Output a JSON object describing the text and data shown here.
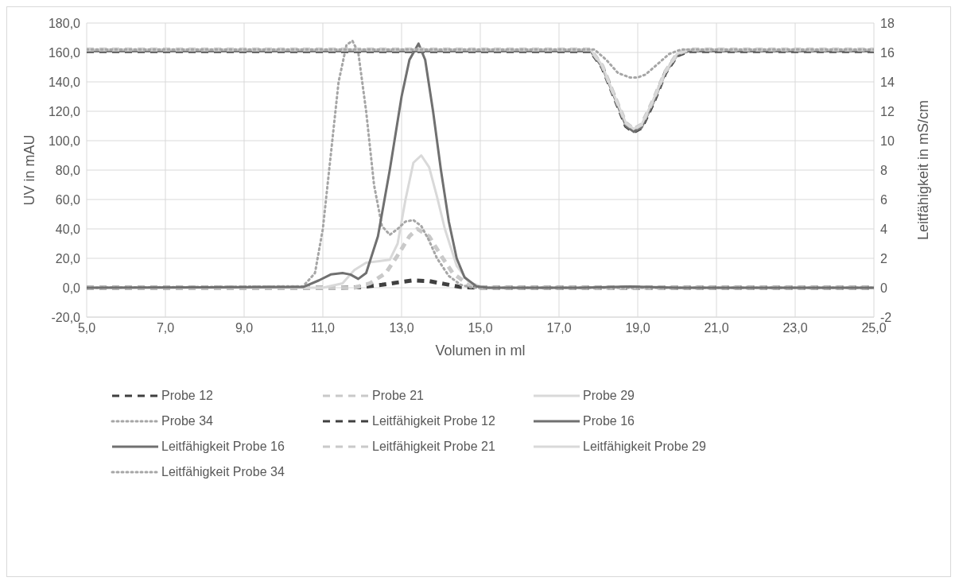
{
  "chart_data": {
    "type": "line",
    "xlabel": "Volumen in ml",
    "ylabel": "UV in mAU",
    "y2label": "Leitfähigkeit in mS/cm",
    "xlim": [
      5,
      25
    ],
    "xticks": [
      {
        "value": 5,
        "label": "5,0"
      },
      {
        "value": 7,
        "label": "7,0"
      },
      {
        "value": 9,
        "label": "9,0"
      },
      {
        "value": 11,
        "label": "11,0"
      },
      {
        "value": 13,
        "label": "13,0"
      },
      {
        "value": 15,
        "label": "15,0"
      },
      {
        "value": 17,
        "label": "17,0"
      },
      {
        "value": 19,
        "label": "19,0"
      },
      {
        "value": 21,
        "label": "21,0"
      },
      {
        "value": 23,
        "label": "23,0"
      },
      {
        "value": 25,
        "label": "25,0"
      }
    ],
    "ylim": [
      -20,
      180
    ],
    "yticks": [
      {
        "value": -20,
        "label": "-20,0"
      },
      {
        "value": 0,
        "label": "0,0"
      },
      {
        "value": 20,
        "label": "20,0"
      },
      {
        "value": 40,
        "label": "40,0"
      },
      {
        "value": 60,
        "label": "60,0"
      },
      {
        "value": 80,
        "label": "80,0"
      },
      {
        "value": 100,
        "label": "100,0"
      },
      {
        "value": 120,
        "label": "120,0"
      },
      {
        "value": 140,
        "label": "140,0"
      },
      {
        "value": 160,
        "label": "160,0"
      },
      {
        "value": 180,
        "label": "180,0"
      }
    ],
    "y2lim": [
      -2,
      18
    ],
    "y2ticks": [
      -2,
      0,
      2,
      4,
      6,
      8,
      10,
      12,
      14,
      16,
      18
    ],
    "grid": true,
    "legend": "bottom",
    "marker": "none",
    "series": [
      {
        "name": "Probe 12",
        "color": "#404040",
        "line_style": "dashed",
        "x": [
          5,
          11.5,
          12,
          12.5,
          13,
          13.3,
          13.7,
          14.1,
          14.5,
          15,
          25
        ],
        "values": [
          0,
          0,
          0.5,
          2,
          4,
          5,
          4.5,
          2.5,
          0.5,
          0,
          0
        ]
      },
      {
        "name": "Probe 21",
        "color": "#c9c9c9",
        "line_style": "dashed",
        "x": [
          5,
          11.8,
          12.2,
          12.6,
          12.9,
          13.2,
          13.4,
          13.7,
          14,
          14.3,
          14.7,
          15,
          25
        ],
        "values": [
          0,
          0,
          3,
          10,
          22,
          35,
          40,
          35,
          22,
          10,
          2,
          0,
          0
        ]
      },
      {
        "name": "Probe 29",
        "color": "#d9d9d9",
        "line_style": "solid",
        "x": [
          5,
          11,
          11.5,
          11.8,
          12.1,
          12.4,
          12.7,
          12.9,
          13.1,
          13.3,
          13.5,
          13.7,
          13.9,
          14.1,
          14.4,
          14.7,
          15.1,
          25
        ],
        "values": [
          0,
          0,
          3,
          12,
          17,
          18,
          19,
          30,
          60,
          85,
          90,
          82,
          62,
          40,
          15,
          4,
          0,
          0
        ]
      },
      {
        "name": "Probe 34",
        "color": "#a6a6a6",
        "line_style": "dotted",
        "x": [
          5,
          10.5,
          10.8,
          11,
          11.2,
          11.4,
          11.6,
          11.75,
          11.9,
          12.1,
          12.3,
          12.5,
          12.7,
          12.9,
          13.1,
          13.3,
          13.5,
          13.7,
          13.9,
          14.2,
          14.5,
          14.8,
          25
        ],
        "values": [
          0,
          1,
          10,
          40,
          90,
          140,
          165,
          168,
          160,
          120,
          70,
          42,
          36,
          40,
          45,
          46,
          42,
          32,
          20,
          8,
          2,
          0,
          0
        ]
      },
      {
        "name": "Leitfähigkeit Probe 12",
        "color": "#404040",
        "line_style": "dashed",
        "axis": "y2",
        "x": [
          5,
          17.8,
          18.1,
          18.4,
          18.7,
          18.9,
          19.1,
          19.4,
          19.7,
          20,
          20.3,
          25
        ],
        "values": [
          16.1,
          16.1,
          15,
          13,
          11,
          10.6,
          10.9,
          12.6,
          14.6,
          15.8,
          16.1,
          16.1
        ]
      },
      {
        "name": "Probe 16",
        "color": "#707070",
        "line_style": "solid",
        "x": [
          5,
          10.5,
          10.9,
          11.2,
          11.5,
          11.7,
          11.9,
          12.1,
          12.4,
          12.7,
          13,
          13.2,
          13.43,
          13.6,
          13.8,
          14,
          14.2,
          14.4,
          14.6,
          14.9,
          15.2,
          17.5,
          18.8,
          20,
          25
        ],
        "values": [
          0,
          0.5,
          5,
          9,
          10,
          9,
          6,
          10,
          35,
          80,
          130,
          155,
          166,
          155,
          120,
          80,
          45,
          20,
          7,
          1,
          0,
          0,
          0.8,
          0,
          0
        ]
      },
      {
        "name": "Leitfähigkeit Probe 16",
        "color": "#707070",
        "line_style": "solid",
        "axis": "y2",
        "x": [
          5,
          17.8,
          18.1,
          18.4,
          18.7,
          18.9,
          19.1,
          19.4,
          19.7,
          20,
          20.3,
          25
        ],
        "values": [
          16.1,
          16.1,
          15,
          13,
          11,
          10.6,
          10.9,
          12.6,
          14.6,
          15.8,
          16.1,
          16.1
        ]
      },
      {
        "name": "Leitfähigkeit Probe 21",
        "color": "#c9c9c9",
        "line_style": "dashed",
        "axis": "y2",
        "x": [
          5,
          17.8,
          18.1,
          18.4,
          18.7,
          18.9,
          19.1,
          19.4,
          19.7,
          20,
          20.3,
          25
        ],
        "values": [
          16.2,
          16.2,
          15.1,
          13.1,
          11.2,
          10.8,
          11.1,
          12.8,
          14.7,
          15.9,
          16.2,
          16.2
        ]
      },
      {
        "name": "Leitfähigkeit Probe 29",
        "color": "#d9d9d9",
        "line_style": "solid",
        "axis": "y2",
        "x": [
          5,
          17.8,
          18.1,
          18.4,
          18.7,
          18.9,
          19.1,
          19.4,
          19.7,
          20,
          20.3,
          25
        ],
        "values": [
          16.2,
          16.2,
          15.1,
          13.1,
          11.2,
          10.8,
          11.1,
          12.8,
          14.7,
          15.9,
          16.2,
          16.2
        ]
      },
      {
        "name": "Leitfähigkeit Probe 34",
        "color": "#a6a6a6",
        "line_style": "dotted",
        "axis": "y2",
        "x": [
          5,
          17.9,
          18.2,
          18.5,
          18.8,
          19,
          19.2,
          19.5,
          19.8,
          20.1,
          25
        ],
        "values": [
          16.2,
          16.2,
          15.5,
          14.6,
          14.3,
          14.3,
          14.5,
          15.2,
          15.9,
          16.2,
          16.2
        ]
      }
    ]
  }
}
